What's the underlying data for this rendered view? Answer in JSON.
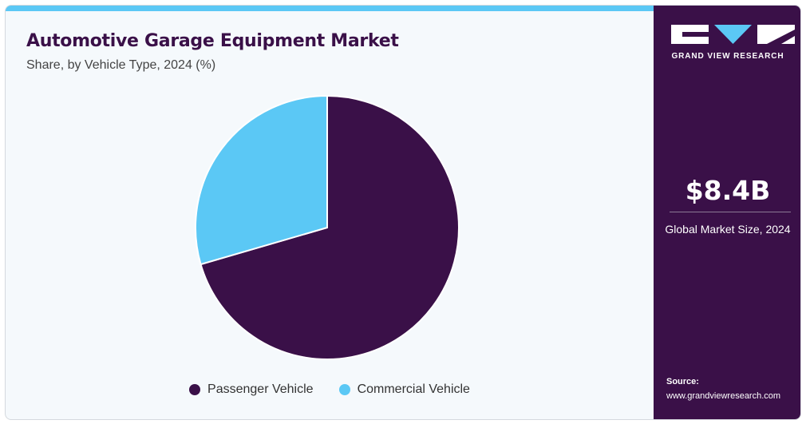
{
  "header": {
    "title": "Automotive Garage Equipment Market",
    "subtitle": "Share, by Vehicle Type, 2024 (%)"
  },
  "chart_data": {
    "type": "pie",
    "title": "Automotive Garage Equipment Market",
    "subtitle": "Share, by Vehicle Type, 2024 (%)",
    "categories": [
      "Passenger Vehicle",
      "Commercial Vehicle"
    ],
    "values": [
      70.5,
      29.5
    ],
    "colors": [
      "#3a1048",
      "#5bc8f5"
    ],
    "legend_position": "bottom"
  },
  "legend": {
    "items": [
      {
        "label": "Passenger Vehicle",
        "color": "#3a1048"
      },
      {
        "label": "Commercial Vehicle",
        "color": "#5bc8f5"
      }
    ]
  },
  "sidebar": {
    "brand": "GRAND VIEW RESEARCH",
    "market_value": "$8.4B",
    "market_caption": "Global Market Size, 2024",
    "source_label": "Source:",
    "source_url": "www.grandviewresearch.com"
  },
  "colors": {
    "primary": "#3a1048",
    "accent": "#5bc8f5",
    "background": "#f5f9fc"
  }
}
